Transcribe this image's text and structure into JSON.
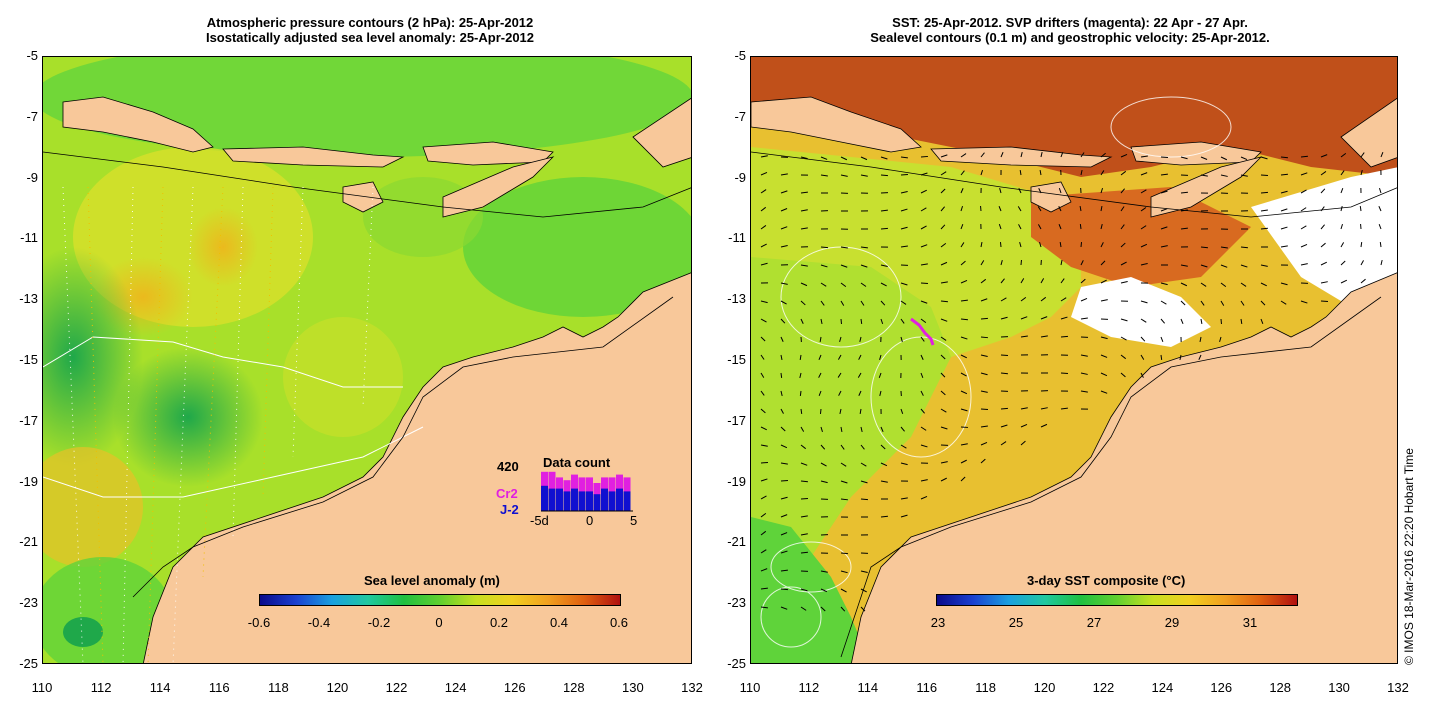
{
  "left_panel": {
    "title_line1": "Atmospheric pressure contours (2 hPa): 25-Apr-2012",
    "title_line2": "Isostatically adjusted sea level anomaly: 25-Apr-2012",
    "y_ticks": [
      "-5",
      "-7",
      "-9",
      "-11",
      "-13",
      "-15",
      "-17",
      "-19",
      "-21",
      "-23",
      "-25"
    ],
    "x_ticks": [
      "110",
      "112",
      "114",
      "116",
      "118",
      "120",
      "122",
      "124",
      "126",
      "128",
      "130",
      "132"
    ],
    "colorbar": {
      "title": "Sea level anomaly (m)",
      "ticks": [
        "-0.6",
        "-0.4",
        "-0.2",
        "0",
        "0.2",
        "0.4",
        "0.6"
      ]
    },
    "histogram": {
      "count": "420",
      "title": "Data count",
      "series": [
        {
          "name": "Cr2",
          "color": "#e020e0"
        },
        {
          "name": "J-2",
          "color": "#1010d0"
        }
      ],
      "x_ticks": [
        "-5d",
        "0",
        "5"
      ]
    }
  },
  "right_panel": {
    "title_line1": "SST: 25-Apr-2012. SVP drifters (magenta): 22 Apr - 27 Apr.",
    "title_line2": "Sealevel contours (0.1 m) and geostrophic velocity: 25-Apr-2012.",
    "y_ticks": [
      "-5",
      "-7",
      "-9",
      "-11",
      "-13",
      "-15",
      "-17",
      "-19",
      "-21",
      "-23",
      "-25"
    ],
    "x_ticks": [
      "110",
      "112",
      "114",
      "116",
      "118",
      "120",
      "122",
      "124",
      "126",
      "128",
      "130",
      "132"
    ],
    "colorbar": {
      "title": "3-day SST composite (°C)",
      "ticks": [
        "23",
        "25",
        "27",
        "29",
        "31"
      ]
    }
  },
  "copyright": "© IMOS 18-Mar-2016 22:20 Hobart Time",
  "colors": {
    "land": "#f8c89a",
    "ocean_green": "#5fd33a",
    "ocean_yellow": "#f2e82a",
    "sst_orange": "#e8932a",
    "sst_red": "#c0501a",
    "drifter": "#e020e0"
  }
}
